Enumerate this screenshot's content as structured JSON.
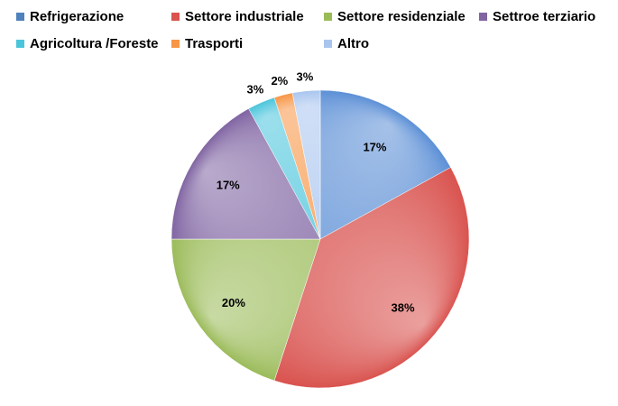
{
  "chart_data": {
    "type": "pie",
    "title": "",
    "series": [
      {
        "categories": [
          "Refrigerazione",
          "Settore industriale",
          "Settore residenziale",
          "Settroe terziario",
          "Agricoltura /Foreste",
          "Trasporti",
          "Altro"
        ],
        "values": [
          17,
          38,
          20,
          17,
          3,
          2,
          3
        ],
        "labels": [
          "17%",
          "38%",
          "20%",
          "17%",
          "3%",
          "2%",
          "3%"
        ],
        "colors": [
          "#5b8fd6",
          "#d9534f",
          "#9bbb59",
          "#8064a2",
          "#4bc5dc",
          "#f79646",
          "#a9c5ee"
        ]
      }
    ],
    "legend_position": "top",
    "legend_items": [
      {
        "label": "Refrigerazione",
        "color": "#4f81bd"
      },
      {
        "label": "Settore industriale",
        "color": "#d9534f"
      },
      {
        "label": "Settore residenziale",
        "color": "#9bbb59"
      },
      {
        "label": "Settroe terziario",
        "color": "#8064a2"
      },
      {
        "label": "Agricoltura /Foreste",
        "color": "#4bc5dc"
      },
      {
        "label": "Trasporti",
        "color": "#f79646"
      },
      {
        "label": "Altro",
        "color": "#a9c5ee"
      }
    ]
  }
}
